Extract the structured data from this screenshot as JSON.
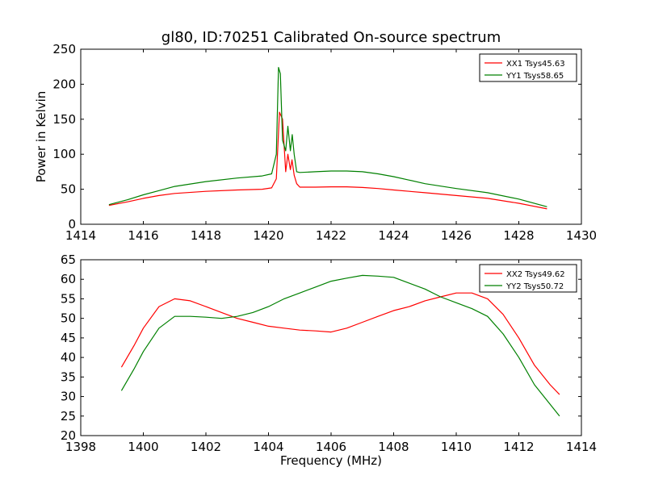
{
  "figure": {
    "title": "gl80, ID:70251 Calibrated On-source spectrum"
  },
  "chart_data": [
    {
      "type": "line",
      "title": "gl80, ID:70251 Calibrated On-source spectrum",
      "xlabel": "",
      "ylabel": "Power in Kelvin",
      "xlim": [
        1414,
        1430
      ],
      "ylim": [
        0,
        250
      ],
      "xticks": [
        1414,
        1416,
        1418,
        1420,
        1422,
        1424,
        1426,
        1428,
        1430
      ],
      "yticks": [
        0,
        50,
        100,
        150,
        200,
        250
      ],
      "legend_position": "top-right",
      "series": [
        {
          "name": "XX1 Tsys45.63",
          "color": "#ff0000",
          "x": [
            1414.9,
            1415.5,
            1416.0,
            1416.5,
            1417.0,
            1418.0,
            1419.0,
            1419.8,
            1420.1,
            1420.25,
            1420.35,
            1420.45,
            1420.55,
            1420.62,
            1420.7,
            1420.75,
            1420.82,
            1420.9,
            1421.0,
            1421.5,
            1422.0,
            1422.5,
            1423.0,
            1423.5,
            1424.0,
            1424.5,
            1425.0,
            1426.0,
            1427.0,
            1428.0,
            1428.9
          ],
          "y": [
            27,
            32,
            37,
            41,
            44,
            47,
            49,
            50,
            52,
            65,
            160,
            150,
            75,
            100,
            78,
            92,
            70,
            58,
            53,
            53,
            53.5,
            53.5,
            52.5,
            51,
            49,
            47,
            45,
            41,
            37,
            30,
            22
          ]
        },
        {
          "name": "YY1 Tsys58.65",
          "color": "#008000",
          "x": [
            1414.9,
            1415.5,
            1416.0,
            1416.5,
            1417.0,
            1418.0,
            1419.0,
            1419.8,
            1420.1,
            1420.25,
            1420.32,
            1420.38,
            1420.45,
            1420.55,
            1420.62,
            1420.7,
            1420.76,
            1420.82,
            1420.9,
            1421.0,
            1421.5,
            1422.0,
            1422.5,
            1423.0,
            1423.5,
            1424.0,
            1424.5,
            1425.0,
            1426.0,
            1427.0,
            1428.0,
            1428.9
          ],
          "y": [
            28,
            35,
            42,
            48,
            54,
            61,
            66,
            69,
            72,
            100,
            224,
            215,
            120,
            105,
            140,
            105,
            128,
            100,
            75,
            74,
            75,
            76,
            76,
            75,
            72,
            68,
            63,
            58,
            51,
            45,
            36,
            25
          ]
        }
      ]
    },
    {
      "type": "line",
      "title": "",
      "xlabel": "Frequency (MHz)",
      "ylabel": "",
      "xlim": [
        1398,
        1414
      ],
      "ylim": [
        20,
        65
      ],
      "xticks": [
        1398,
        1400,
        1402,
        1404,
        1406,
        1408,
        1410,
        1412,
        1414
      ],
      "yticks": [
        20,
        25,
        30,
        35,
        40,
        45,
        50,
        55,
        60,
        65
      ],
      "legend_position": "top-right",
      "series": [
        {
          "name": "XX2 Tsys49.62",
          "color": "#ff0000",
          "x": [
            1399.3,
            1399.7,
            1400.0,
            1400.5,
            1401.0,
            1401.5,
            1402.0,
            1402.5,
            1403.0,
            1403.5,
            1404.0,
            1404.5,
            1405.0,
            1405.5,
            1406.0,
            1406.5,
            1407.0,
            1407.5,
            1408.0,
            1408.5,
            1409.0,
            1409.5,
            1410.0,
            1410.5,
            1411.0,
            1411.5,
            1412.0,
            1412.5,
            1413.0,
            1413.3
          ],
          "y": [
            37.5,
            43,
            47.5,
            53,
            55,
            54.5,
            53,
            51.5,
            50,
            49,
            48,
            47.5,
            47,
            46.8,
            46.5,
            47.5,
            49,
            50.5,
            52,
            53,
            54.5,
            55.5,
            56.5,
            56.5,
            55,
            51,
            45,
            38,
            33,
            30.5
          ]
        },
        {
          "name": "YY2 Tsys50.72",
          "color": "#008000",
          "x": [
            1399.3,
            1399.7,
            1400.0,
            1400.5,
            1401.0,
            1401.5,
            1402.0,
            1402.5,
            1403.0,
            1403.5,
            1404.0,
            1404.5,
            1405.0,
            1405.5,
            1406.0,
            1406.5,
            1407.0,
            1407.5,
            1408.0,
            1408.5,
            1409.0,
            1409.5,
            1410.0,
            1410.5,
            1411.0,
            1411.5,
            1412.0,
            1412.5,
            1413.0,
            1413.3
          ],
          "y": [
            31.5,
            37,
            41.5,
            47.5,
            50.5,
            50.5,
            50.3,
            50,
            50.5,
            51.5,
            53,
            55,
            56.5,
            58,
            59.5,
            60.3,
            61,
            60.8,
            60.5,
            59,
            57.5,
            55.5,
            54,
            52.5,
            50.5,
            46,
            40,
            33,
            28,
            25
          ]
        }
      ]
    }
  ]
}
